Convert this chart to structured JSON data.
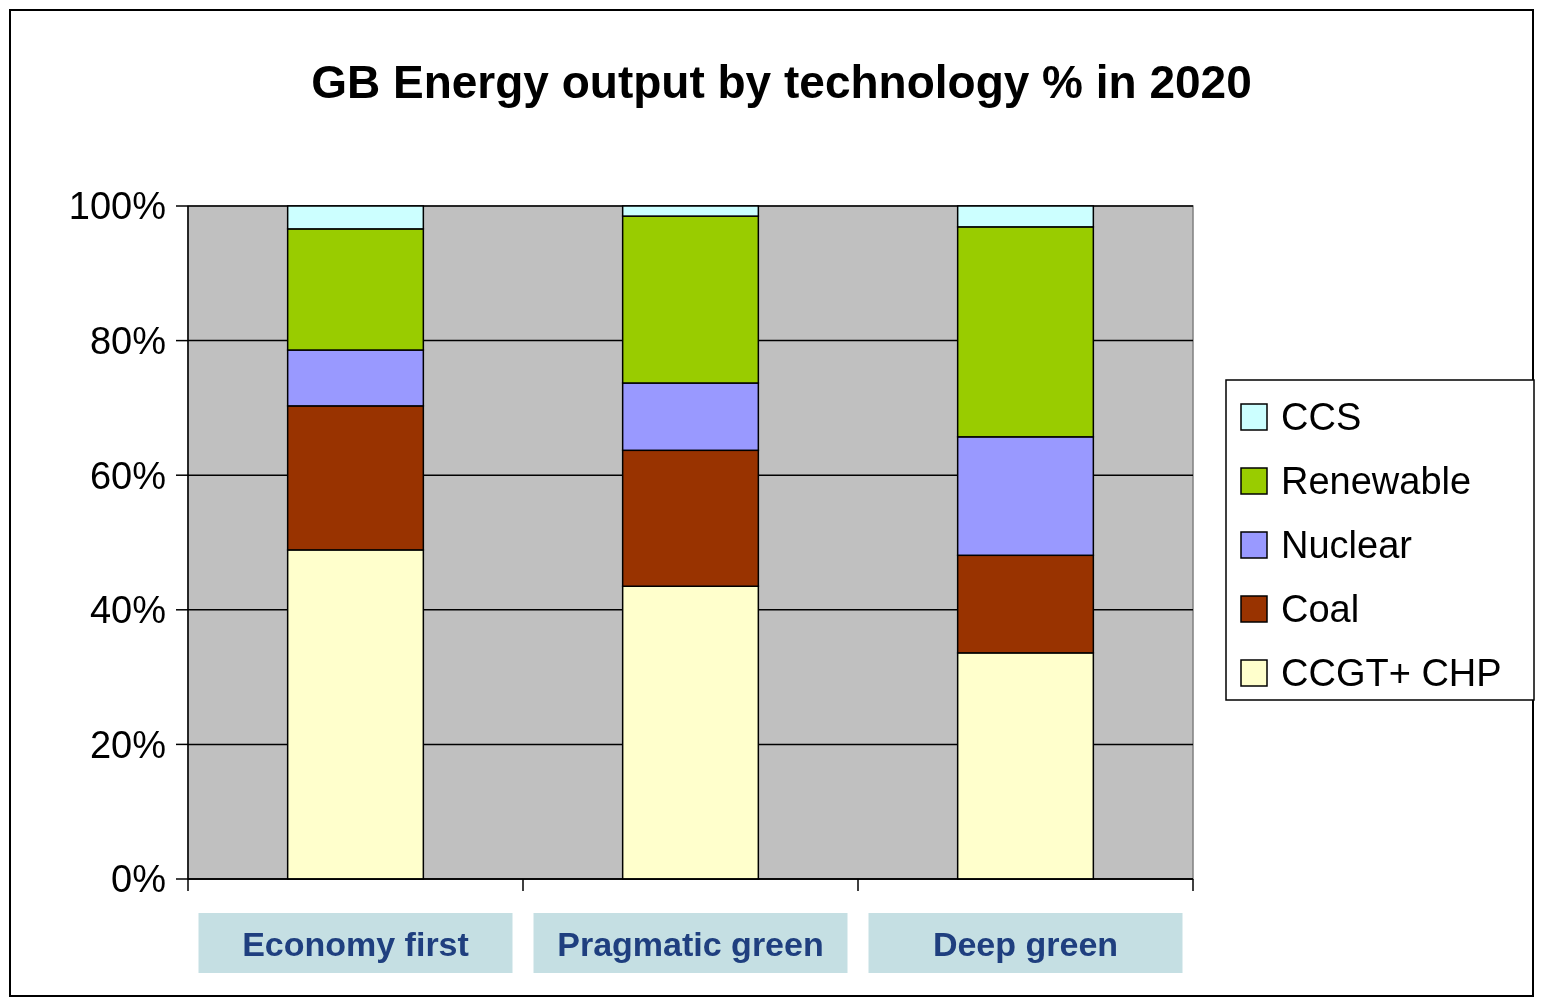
{
  "chart_data": {
    "type": "bar",
    "title": "GB Energy output by technology % in 2020",
    "categories": [
      "Economy first",
      "Pragmatic green",
      "Deep green"
    ],
    "stacked": true,
    "ylim": [
      0,
      100
    ],
    "yticks": [
      {
        "value": 0,
        "label": "0%"
      },
      {
        "value": 20,
        "label": "20%"
      },
      {
        "value": 40,
        "label": "40%"
      },
      {
        "value": 60,
        "label": "60%"
      },
      {
        "value": 80,
        "label": "80%"
      },
      {
        "value": 100,
        "label": "100%"
      }
    ],
    "grid": "y",
    "legend": "right",
    "series": [
      {
        "name": "CCGT+ CHP",
        "color": "#ffffcc",
        "values": [
          48.9,
          43.5,
          33.6
        ]
      },
      {
        "name": "Coal",
        "color": "#993300",
        "values": [
          21.4,
          20.2,
          14.5
        ]
      },
      {
        "name": "Nuclear",
        "color": "#9999ff",
        "values": [
          8.3,
          10.0,
          17.6
        ]
      },
      {
        "name": "Renewable",
        "color": "#99cc00",
        "values": [
          18.0,
          24.8,
          31.2
        ]
      },
      {
        "name": "CCS",
        "color": "#ccffff",
        "values": [
          3.4,
          1.5,
          3.1
        ]
      }
    ]
  }
}
